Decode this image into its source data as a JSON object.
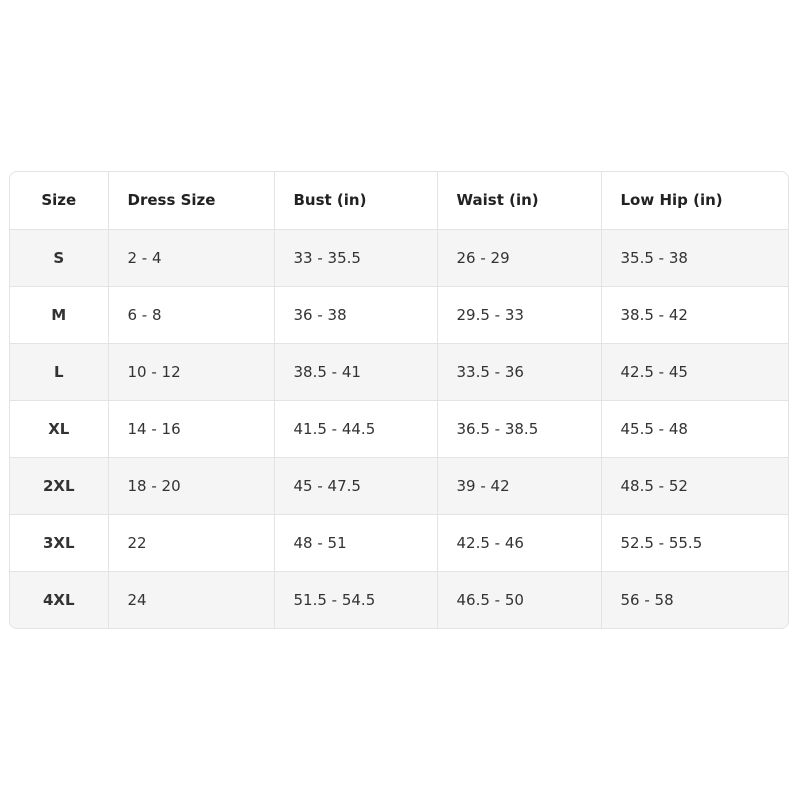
{
  "table": {
    "header": [
      "Size",
      "Dress Size",
      "Bust (in)",
      "Waist (in)",
      "Low Hip (in)"
    ],
    "rows": [
      [
        "S",
        "2 - 4",
        "33 - 35.5",
        "26 - 29",
        "35.5 - 38"
      ],
      [
        "M",
        "6 - 8",
        "36 - 38",
        "29.5 - 33",
        "38.5 - 42"
      ],
      [
        "L",
        "10 - 12",
        "38.5 - 41",
        "33.5 - 36",
        "42.5 - 45"
      ],
      [
        "XL",
        "14 - 16",
        "41.5 - 44.5",
        "36.5 - 38.5",
        "45.5 - 48"
      ],
      [
        "2XL",
        "18 - 20",
        "45 - 47.5",
        "39 - 42",
        "48.5 - 52"
      ],
      [
        "3XL",
        "22",
        "48 - 51",
        "42.5 - 46",
        "52.5 - 55.5"
      ],
      [
        "4XL",
        "24",
        "51.5 - 54.5",
        "46.5 - 50",
        "56 - 58"
      ]
    ]
  }
}
